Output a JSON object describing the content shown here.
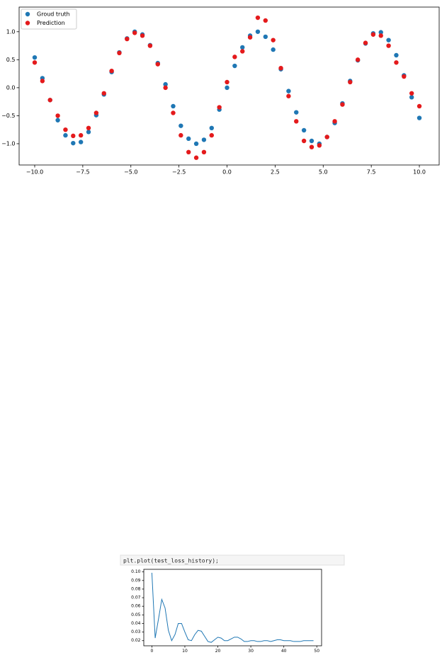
{
  "chart_data": [
    {
      "type": "scatter",
      "x": [
        -10,
        -9.6,
        -9.2,
        -8.8,
        -8.4,
        -8,
        -7.6,
        -7.2,
        -6.8,
        -6.4,
        -6,
        -5.6,
        -5.2,
        -4.8,
        -4.4,
        -4,
        -3.6,
        -3.2,
        -2.8,
        -2.4,
        -2,
        -1.6,
        -1.2,
        -0.8,
        -0.4,
        0,
        0.4,
        0.8,
        1.2,
        1.6,
        2,
        2.4,
        2.8,
        3.2,
        3.6,
        4,
        4.4,
        4.8,
        5.2,
        5.6,
        6,
        6.4,
        6.8,
        7.2,
        7.6,
        8,
        8.4,
        8.8,
        9.2,
        9.6,
        10
      ],
      "series": [
        {
          "name": "Groud truth",
          "color": "#1f77b4",
          "values": [
            0.54,
            0.17,
            -0.22,
            -0.58,
            -0.85,
            -0.99,
            -0.97,
            -0.79,
            -0.49,
            -0.12,
            0.28,
            0.63,
            0.88,
            1.0,
            0.95,
            0.76,
            0.44,
            0.06,
            -0.33,
            -0.68,
            -0.91,
            -1.0,
            -0.93,
            -0.72,
            -0.39,
            0,
            0.39,
            0.72,
            0.93,
            1.0,
            0.91,
            0.68,
            0.33,
            -0.06,
            -0.44,
            -0.76,
            -0.95,
            -1.0,
            -0.88,
            -0.63,
            -0.28,
            0.12,
            0.49,
            0.79,
            0.97,
            0.99,
            0.85,
            0.58,
            0.22,
            -0.17,
            -0.54
          ]
        },
        {
          "name": "Prediction",
          "color": "#e41a1c",
          "values": [
            0.45,
            0.12,
            -0.22,
            -0.5,
            -0.75,
            -0.86,
            -0.85,
            -0.72,
            -0.45,
            -0.1,
            0.3,
            0.62,
            0.87,
            0.98,
            0.93,
            0.75,
            0.42,
            0.0,
            -0.45,
            -0.85,
            -1.15,
            -1.25,
            -1.15,
            -0.85,
            -0.35,
            0.1,
            0.55,
            0.65,
            0.9,
            1.25,
            1.2,
            0.85,
            0.35,
            -0.15,
            -0.6,
            -0.95,
            -1.06,
            -1.03,
            -0.88,
            -0.6,
            -0.3,
            0.1,
            0.5,
            0.8,
            0.95,
            0.93,
            0.75,
            0.45,
            0.2,
            -0.1,
            -0.33
          ]
        }
      ],
      "xlim": [
        -10.81,
        11.03
      ],
      "xticks": [
        {
          "value": -10,
          "label": "−10.0"
        },
        {
          "value": -7.5,
          "label": "−7.5"
        },
        {
          "value": -5,
          "label": "−5.0"
        },
        {
          "value": -2.5,
          "label": "−2.5"
        },
        {
          "value": 0,
          "label": "0.0"
        },
        {
          "value": 2.5,
          "label": "2.5"
        },
        {
          "value": 5,
          "label": "5.0"
        },
        {
          "value": 7.5,
          "label": "7.5"
        },
        {
          "value": 10,
          "label": "10.0"
        }
      ],
      "ylim": [
        -1.38,
        1.44
      ],
      "yticks": [
        {
          "value": -1,
          "label": "−1.0"
        },
        {
          "value": -0.5,
          "label": "−0.5"
        },
        {
          "value": 0,
          "label": "0.0"
        },
        {
          "value": 0.5,
          "label": "0.5"
        },
        {
          "value": 1,
          "label": "1.0"
        }
      ],
      "grid": false,
      "legend": "upper left"
    },
    {
      "type": "line",
      "x": [
        0,
        1,
        2,
        3,
        4,
        5,
        6,
        7,
        8,
        9,
        10,
        11,
        12,
        13,
        14,
        15,
        16,
        17,
        18,
        19,
        20,
        21,
        22,
        23,
        24,
        25,
        26,
        27,
        28,
        29,
        30,
        31,
        32,
        33,
        34,
        35,
        36,
        37,
        38,
        39,
        40,
        41,
        42,
        43,
        44,
        45,
        46,
        47,
        48,
        49
      ],
      "series": [
        {
          "color": "#1f77b4",
          "values": [
            0.099,
            0.023,
            0.045,
            0.068,
            0.058,
            0.032,
            0.02,
            0.027,
            0.04,
            0.04,
            0.03,
            0.021,
            0.02,
            0.027,
            0.032,
            0.031,
            0.025,
            0.019,
            0.018,
            0.021,
            0.024,
            0.023,
            0.02,
            0.02,
            0.022,
            0.024,
            0.024,
            0.022,
            0.019,
            0.019,
            0.02,
            0.02,
            0.019,
            0.019,
            0.02,
            0.02,
            0.019,
            0.02,
            0.021,
            0.021,
            0.02,
            0.02,
            0.02,
            0.019,
            0.019,
            0.019,
            0.02,
            0.02,
            0.02,
            0.02
          ]
        }
      ],
      "xlim": [
        -2.45,
        51.45
      ],
      "xticks": [
        0,
        10,
        20,
        30,
        40,
        50
      ],
      "ylim": [
        0.014,
        0.103
      ],
      "yticks": [
        0.02,
        0.03,
        0.04,
        0.05,
        0.06,
        0.07,
        0.08,
        0.09,
        {
          "value": 0.1,
          "label": "0.10"
        }
      ],
      "grid": false
    }
  ],
  "cell": {
    "code": "plt.plot(test_loss_history);"
  }
}
